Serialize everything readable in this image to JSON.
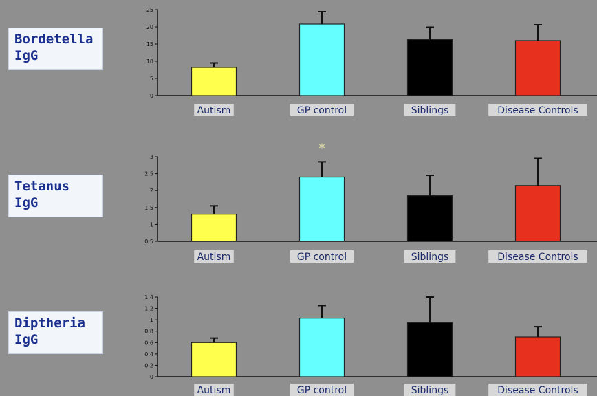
{
  "chart_data": [
    {
      "type": "bar",
      "panel_label": [
        "Bordetella",
        "IgG"
      ],
      "categories": [
        "Autism",
        "GP control",
        "Siblings",
        "Disease Controls"
      ],
      "values": [
        8.2,
        20.8,
        16.3,
        16.0
      ],
      "errors": [
        1.3,
        3.6,
        3.6,
        4.6
      ],
      "colors": [
        "#ffff4d",
        "#66ffff",
        "#000000",
        "#e8301e"
      ],
      "ylim": [
        0,
        25
      ],
      "yticks": [
        "0",
        "5",
        "10",
        "15",
        "20",
        "25"
      ],
      "annotation": ""
    },
    {
      "type": "bar",
      "panel_label": [
        "Tetanus",
        "IgG"
      ],
      "categories": [
        "Autism",
        "GP control",
        "Siblings",
        "Disease Controls"
      ],
      "values": [
        1.3,
        2.4,
        1.85,
        2.15
      ],
      "errors": [
        0.25,
        0.45,
        0.6,
        0.8
      ],
      "colors": [
        "#ffff4d",
        "#66ffff",
        "#000000",
        "#e8301e"
      ],
      "ylim": [
        0.5,
        3
      ],
      "yticks": [
        "0.5",
        "1",
        "1.5",
        "2",
        "2.5",
        "3"
      ],
      "annotation": "*"
    },
    {
      "type": "bar",
      "panel_label": [
        "Diptheria",
        "IgG"
      ],
      "categories": [
        "Autism",
        "GP control",
        "Siblings",
        "Disease Controls"
      ],
      "values": [
        0.6,
        1.03,
        0.95,
        0.7
      ],
      "errors": [
        0.08,
        0.22,
        0.45,
        0.18
      ],
      "colors": [
        "#ffff4d",
        "#66ffff",
        "#000000",
        "#e8301e"
      ],
      "ylim": [
        0,
        1.4
      ],
      "yticks": [
        "0",
        "0.2",
        "0.4",
        "0.6",
        "0.8",
        "1",
        "1.2",
        "1.4"
      ],
      "annotation": ""
    }
  ]
}
